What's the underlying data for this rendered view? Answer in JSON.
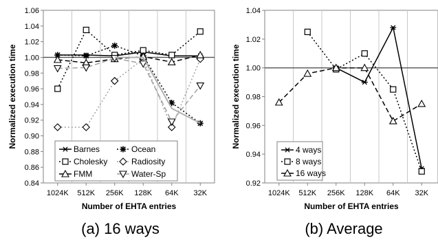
{
  "chart_data": [
    {
      "type": "line",
      "caption": "(a) 16 ways",
      "xlabel": "Number of EHTA entries",
      "ylabel": "Normalized execution time",
      "categories": [
        "1024K",
        "512K",
        "256K",
        "128K",
        "64K",
        "32K"
      ],
      "ylim": [
        0.84,
        1.06
      ],
      "yticks": [
        "0.84",
        "0.86",
        "0.88",
        "0.90",
        "0.92",
        "0.94",
        "0.96",
        "0.98",
        "1.00",
        "1.02",
        "1.04",
        "1.06"
      ],
      "reference_line": 1.0,
      "legend_position": "bottom-center",
      "series": [
        {
          "name": "Barnes",
          "marker": "asterisk",
          "dash": "solid",
          "color": "#000000",
          "values": [
            1.003,
            1.003,
            1.002,
            1.007,
            1.002,
            1.002
          ]
        },
        {
          "name": "Ocean",
          "marker": "star",
          "dash": "dotted",
          "color": "#000000",
          "values": [
            1.003,
            1.002,
            1.015,
            1.002,
            0.942,
            0.916
          ]
        },
        {
          "name": "Cholesky",
          "marker": "square",
          "dash": "dotted",
          "color": "#000000",
          "values": [
            0.96,
            1.035,
            1.003,
            1.009,
            1.003,
            1.033
          ]
        },
        {
          "name": "Radiosity",
          "marker": "diamond",
          "dash": "dotted",
          "color": "#a0a0a0",
          "values": [
            0.911,
            0.911,
            0.97,
            0.998,
            0.911,
            0.998
          ]
        },
        {
          "name": "FMM",
          "marker": "triangle-up",
          "dash": "dashed",
          "color": "#000000",
          "values": [
            0.997,
            0.993,
            0.998,
            1.001,
            0.994,
            1.003
          ]
        },
        {
          "name": "Water-Sp",
          "marker": "triangle-down",
          "dash": "dashed",
          "color": "#a0a0a0",
          "values": [
            0.986,
            0.987,
            0.999,
            0.992,
            0.918,
            0.964
          ]
        },
        {
          "name": "",
          "marker": "none",
          "dash": "solid",
          "color": "#b0b0b0",
          "values": [
            null,
            null,
            1.0,
            1.0,
            0.935,
            0.916
          ]
        }
      ]
    },
    {
      "type": "line",
      "caption": "(b) Average",
      "xlabel": "Number of EHTA entries",
      "ylabel": "Normalized execution time",
      "categories": [
        "1024K",
        "512K",
        "256K",
        "128K",
        "64K",
        "32K"
      ],
      "ylim": [
        0.92,
        1.04
      ],
      "yticks": [
        "0.92",
        "0.94",
        "0.96",
        "0.98",
        "1.00",
        "1.02",
        "1.04"
      ],
      "reference_line": 1.0,
      "legend_position": "bottom-left",
      "series": [
        {
          "name": "4 ways",
          "marker": "asterisk",
          "dash": "solid",
          "color": "#000000",
          "values": [
            null,
            null,
            1.0,
            0.99,
            1.028,
            0.93
          ]
        },
        {
          "name": "8 ways",
          "marker": "square",
          "dash": "dotted",
          "color": "#000000",
          "values": [
            null,
            1.025,
            0.999,
            1.01,
            0.985,
            0.928
          ]
        },
        {
          "name": "16 ways",
          "marker": "triangle-up",
          "dash": "dashed",
          "color": "#000000",
          "values": [
            0.976,
            0.996,
            1.0,
            1.0,
            0.963,
            0.975
          ]
        }
      ]
    }
  ]
}
